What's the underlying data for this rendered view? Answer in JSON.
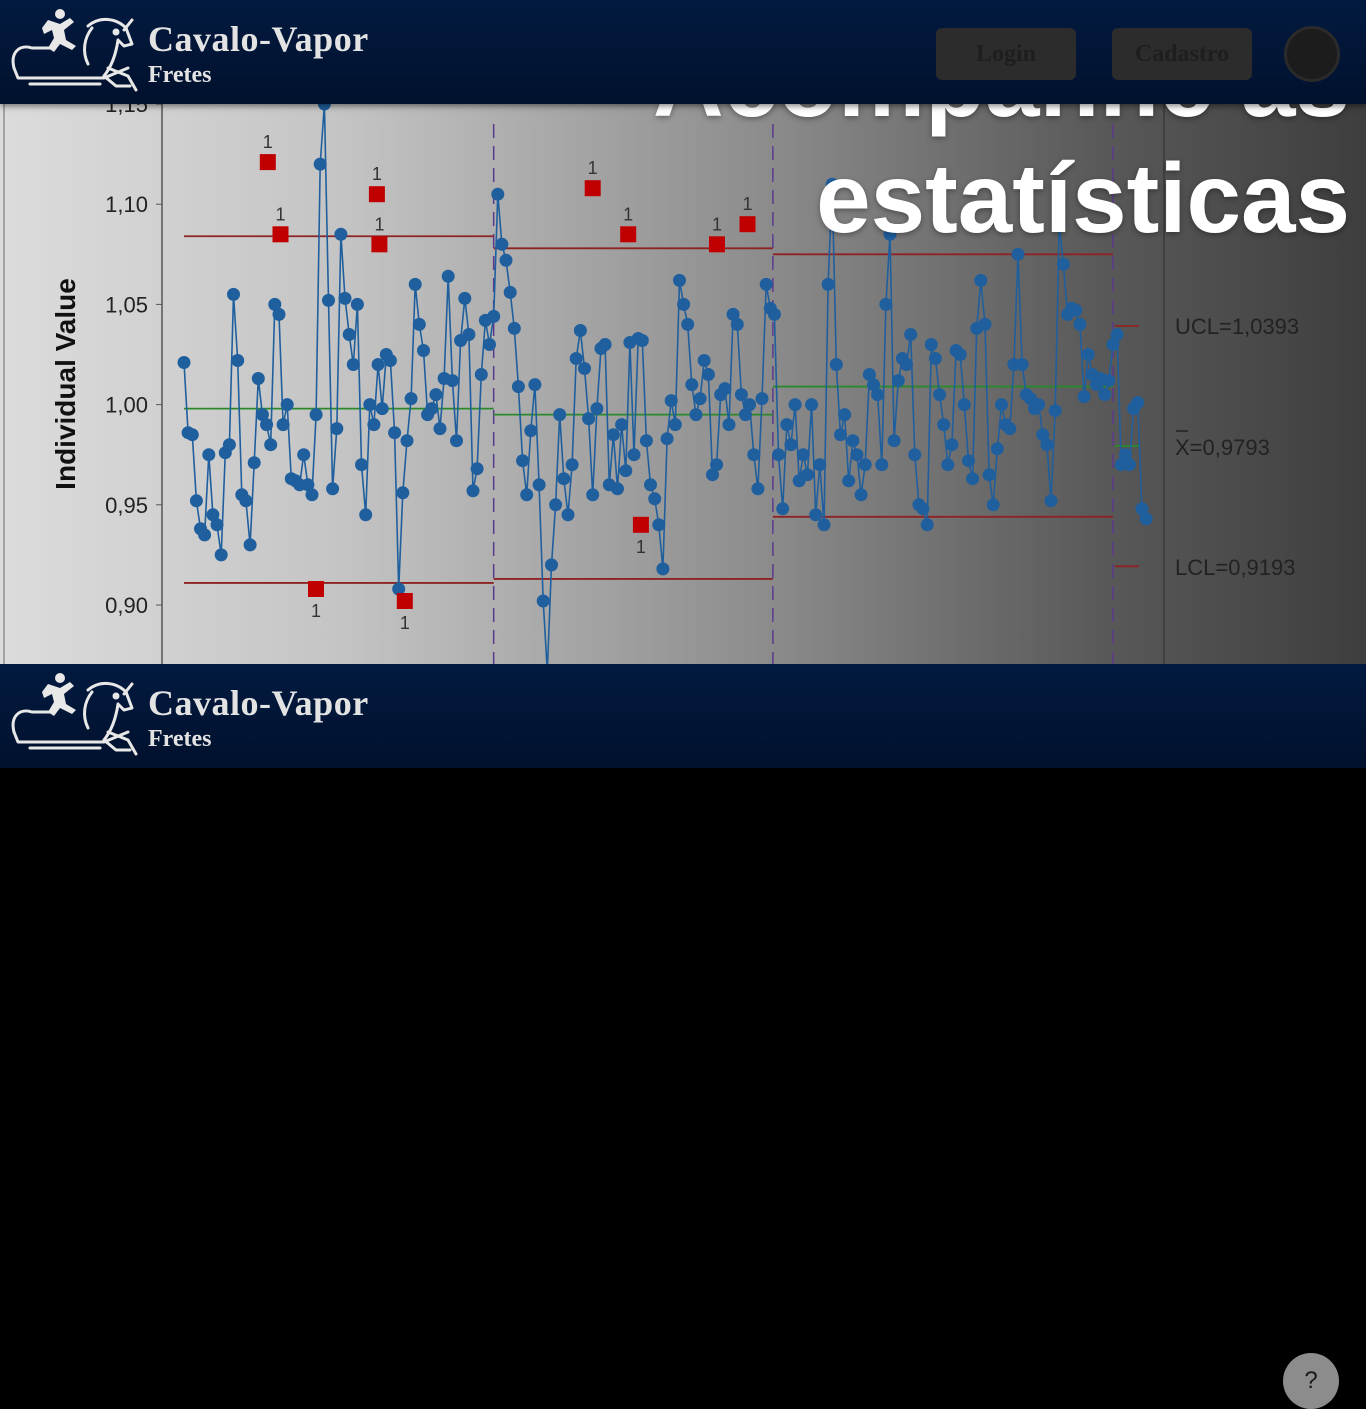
{
  "header": {
    "brand": "Cavalo-Vapor",
    "subtitle": "Fretes",
    "login_label": "Login",
    "signup_label": "Cadastro"
  },
  "hero": {
    "headline_line1": "Acompanhe as",
    "headline_line2": "estatísticas"
  },
  "footer": {
    "brand": "Cavalo-Vapor",
    "subtitle": "Fretes",
    "help_label": "?"
  },
  "icons": {
    "logo": "horse-runner-logo-icon",
    "avatar": "user-avatar-icon",
    "help": "help-icon"
  },
  "colors": {
    "navy": "#021a40",
    "data": "#1f5f9e",
    "center": "#2a8a2a",
    "limit": "#8e2323",
    "outlier": "#c00000"
  },
  "chart_data": {
    "type": "line",
    "ylabel": "Individual Value",
    "yticks": [
      "0,90",
      "0,95",
      "1,00",
      "1,05",
      "1,10",
      "1,15"
    ],
    "ylim": [
      0.865,
      1.155
    ],
    "xlim": [
      1,
      380
    ],
    "stage_breaks": [
      123,
      233,
      367
    ],
    "annotations": {
      "ucl": "UCL=1,0393",
      "mean": "X=0,9793",
      "lcl": "LCL=0,9193",
      "test_flag": "1"
    },
    "stages": [
      {
        "x_range": [
          1,
          123
        ],
        "center": 0.998,
        "ucl": 1.084,
        "lcl": 0.911
      },
      {
        "x_range": [
          123,
          233
        ],
        "center": 0.995,
        "ucl": 1.078,
        "lcl": 0.913
      },
      {
        "x_range": [
          233,
          367
        ],
        "center": 1.009,
        "ucl": 1.075,
        "lcl": 0.944
      },
      {
        "x_range": [
          367,
          380
        ],
        "center": 0.9793,
        "ucl": 1.0393,
        "lcl": 0.9193
      }
    ],
    "series": [
      {
        "values": [
          1.021,
          0.986,
          0.985,
          0.952,
          0.938,
          0.935,
          0.975,
          0.945,
          0.94,
          0.925,
          0.976,
          0.98,
          1.055,
          1.022,
          0.955,
          0.952,
          0.93,
          0.971,
          1.013,
          0.995,
          0.99,
          0.98,
          1.05,
          1.045,
          0.99,
          1.0,
          0.963,
          0.962,
          0.96,
          0.975,
          0.96,
          0.955,
          0.995,
          1.12,
          1.15,
          1.052,
          0.958,
          0.988,
          1.085,
          1.053,
          1.035,
          1.02,
          1.05,
          0.97,
          0.945,
          1.0,
          0.99,
          1.02,
          0.998,
          1.025,
          1.022,
          0.986,
          0.908,
          0.956,
          0.982,
          1.003,
          1.06,
          1.04,
          1.027,
          0.995,
          0.998,
          1.005,
          0.988,
          1.013,
          1.064,
          1.012,
          0.982,
          1.032,
          1.053,
          1.035,
          0.957,
          0.968,
          1.015,
          1.042,
          1.03,
          1.044,
          1.105,
          1.08,
          1.072,
          1.056,
          1.038,
          1.009,
          0.972,
          0.955,
          0.987,
          1.01,
          0.96,
          0.902,
          0.867,
          0.92,
          0.95,
          0.995,
          0.963,
          0.945,
          0.97,
          1.023,
          1.037,
          1.018,
          0.993,
          0.955,
          0.998,
          1.028,
          1.03,
          0.96,
          0.985,
          0.958,
          0.99,
          0.967,
          1.031,
          0.975,
          1.033,
          1.032,
          0.982,
          0.96,
          0.953,
          0.94,
          0.918,
          0.983,
          1.002,
          0.99,
          1.062,
          1.05,
          1.04,
          1.01,
          0.995,
          1.003,
          1.022,
          1.015,
          0.965,
          0.97,
          1.005,
          1.008,
          0.99,
          1.045,
          1.04,
          1.005,
          0.995,
          1.0,
          0.975,
          0.958,
          1.003,
          1.06,
          1.048,
          1.045,
          0.975,
          0.948,
          0.99,
          0.98,
          1.0,
          0.962,
          0.975,
          0.965,
          1.0,
          0.945,
          0.97,
          0.94,
          1.06,
          1.11,
          1.02,
          0.985,
          0.995,
          0.962,
          0.982,
          0.975,
          0.955,
          0.97,
          1.015,
          1.01,
          1.005,
          0.97,
          1.05,
          1.085,
          0.982,
          1.012,
          1.023,
          1.02,
          1.035,
          0.975,
          0.95,
          0.948,
          0.94,
          1.03,
          1.023,
          1.005,
          0.99,
          0.97,
          0.98,
          1.027,
          1.025,
          1.0,
          0.972,
          0.963,
          1.038,
          1.062,
          1.04,
          0.965,
          0.95,
          0.978,
          1.0,
          0.99,
          0.988,
          1.02,
          1.075,
          1.02,
          1.005,
          1.003,
          0.998,
          1.0,
          0.985,
          0.98,
          0.952,
          0.997,
          1.09,
          1.07,
          1.045,
          1.048,
          1.047,
          1.04,
          1.004,
          1.025,
          1.015,
          1.01,
          1.013,
          1.005,
          1.012,
          1.03,
          1.035,
          0.97,
          0.975,
          0.97,
          0.998,
          1.001,
          0.948,
          0.943
        ]
      }
    ],
    "outliers": [
      {
        "x": 34,
        "y": 1.121,
        "flag": "1"
      },
      {
        "x": 39,
        "y": 1.085,
        "flag": "1"
      },
      {
        "x": 53,
        "y": 0.908,
        "flag": "1"
      },
      {
        "x": 77,
        "y": 1.105,
        "flag": "1"
      },
      {
        "x": 78,
        "y": 1.08,
        "flag": "1"
      },
      {
        "x": 88,
        "y": 0.902,
        "flag": "1"
      },
      {
        "x": 162,
        "y": 1.108,
        "flag": "1"
      },
      {
        "x": 176,
        "y": 1.085,
        "flag": "1"
      },
      {
        "x": 181,
        "y": 0.94,
        "flag": "1"
      },
      {
        "x": 211,
        "y": 1.08,
        "flag": "1"
      },
      {
        "x": 223,
        "y": 1.09,
        "flag": "1"
      }
    ]
  }
}
